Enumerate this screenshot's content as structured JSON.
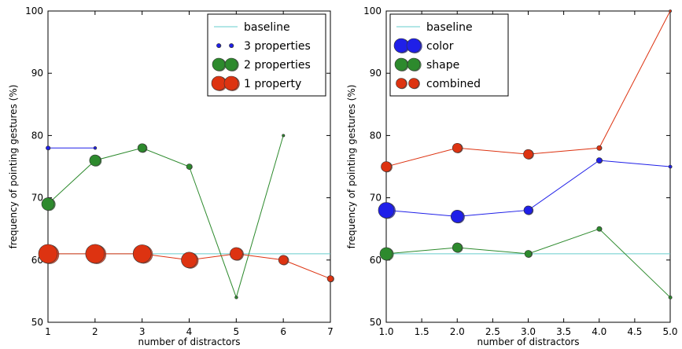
{
  "chart_data": [
    {
      "type": "scatter",
      "xlabel": "number of distractors",
      "ylabel": "frequency of pointing gestures (%)",
      "xlim": [
        1,
        7
      ],
      "ylim": [
        50,
        100
      ],
      "xticks": [
        1,
        2,
        3,
        4,
        5,
        6,
        7
      ],
      "xtick_labels": [
        "1",
        "2",
        "3",
        "4",
        "5",
        "6",
        "7"
      ],
      "yticks": [
        50,
        60,
        70,
        80,
        90,
        100
      ],
      "ytick_labels": [
        "50",
        "60",
        "70",
        "80",
        "90",
        "100"
      ],
      "legend_position": "top-right",
      "grid": false,
      "baseline": {
        "name": "baseline",
        "value": 61,
        "color": "#66cccc"
      },
      "series": [
        {
          "name": "3 properties",
          "color": "#1f1fe8",
          "points": [
            {
              "x": 1,
              "y": 78,
              "size": 2.6
            },
            {
              "x": 2,
              "y": 78,
              "size": 1.8
            }
          ]
        },
        {
          "name": "2 properties",
          "color": "#2d8a2d",
          "points": [
            {
              "x": 1,
              "y": 69,
              "size": 8
            },
            {
              "x": 2,
              "y": 76,
              "size": 7
            },
            {
              "x": 3,
              "y": 78,
              "size": 5.5
            },
            {
              "x": 4,
              "y": 75,
              "size": 3.5
            },
            {
              "x": 5,
              "y": 54,
              "size": 1.8
            },
            {
              "x": 6,
              "y": 80,
              "size": 1.6
            }
          ]
        },
        {
          "name": "1 property",
          "color": "#dd3311",
          "points": [
            {
              "x": 1,
              "y": 61,
              "size": 12
            },
            {
              "x": 2,
              "y": 61,
              "size": 12
            },
            {
              "x": 3,
              "y": 61,
              "size": 11.5
            },
            {
              "x": 4,
              "y": 60,
              "size": 10
            },
            {
              "x": 5,
              "y": 61,
              "size": 8
            },
            {
              "x": 6,
              "y": 60,
              "size": 6
            },
            {
              "x": 7,
              "y": 57,
              "size": 4
            }
          ]
        }
      ]
    },
    {
      "type": "scatter",
      "xlabel": "number of distractors",
      "ylabel": "frequency of pointing gestures (%)",
      "xlim": [
        1,
        5
      ],
      "ylim": [
        50,
        100
      ],
      "xticks": [
        1,
        1.5,
        2,
        2.5,
        3,
        3.5,
        4,
        4.5,
        5
      ],
      "xtick_labels": [
        "1.0",
        "1.5",
        "2.0",
        "2.5",
        "3.0",
        "3.5",
        "4.0",
        "4.5",
        "5.0"
      ],
      "yticks": [
        50,
        60,
        70,
        80,
        90,
        100
      ],
      "ytick_labels": [
        "50",
        "60",
        "70",
        "80",
        "90",
        "100"
      ],
      "legend_position": "top-left",
      "grid": false,
      "baseline": {
        "name": "baseline",
        "value": 61,
        "color": "#66cccc"
      },
      "series": [
        {
          "name": "color",
          "color": "#1f1fe8",
          "points": [
            {
              "x": 1,
              "y": 68,
              "size": 10
            },
            {
              "x": 2,
              "y": 67,
              "size": 8
            },
            {
              "x": 3,
              "y": 68,
              "size": 5.5
            },
            {
              "x": 4,
              "y": 76,
              "size": 3.5
            },
            {
              "x": 5,
              "y": 75,
              "size": 2
            }
          ]
        },
        {
          "name": "shape",
          "color": "#2d8a2d",
          "points": [
            {
              "x": 1,
              "y": 61,
              "size": 8
            },
            {
              "x": 2,
              "y": 62,
              "size": 6
            },
            {
              "x": 3,
              "y": 61,
              "size": 4.5
            },
            {
              "x": 4,
              "y": 65,
              "size": 3
            },
            {
              "x": 5,
              "y": 54,
              "size": 2
            }
          ]
        },
        {
          "name": "combined",
          "color": "#dd3311",
          "points": [
            {
              "x": 1,
              "y": 75,
              "size": 6.5
            },
            {
              "x": 2,
              "y": 78,
              "size": 6
            },
            {
              "x": 3,
              "y": 77,
              "size": 6
            },
            {
              "x": 4,
              "y": 78,
              "size": 3
            },
            {
              "x": 5,
              "y": 100,
              "size": 1.5
            }
          ]
        }
      ]
    }
  ]
}
